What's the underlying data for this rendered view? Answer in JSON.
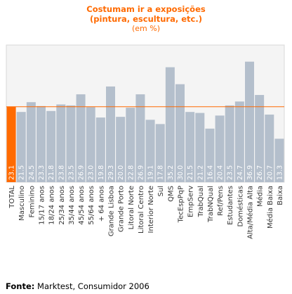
{
  "title_line1": "Costumam ir a exposições",
  "title_line2": "(pintura, escultura, etc.)",
  "subtitle": "(em %)",
  "source_label": "Fonte:",
  "source_text": "Marktest, Consumidor 2006",
  "colors": {
    "bar": "#b4bfcc",
    "highlight": "#ff6a00",
    "plot_bg": "#f4f4f4",
    "reference_line": "#ff6a00"
  },
  "chart_data": {
    "type": "bar",
    "title": "Costumam ir a exposições (pintura, escultura, etc.)",
    "subtitle": "(em %)",
    "ylim": [
      0,
      42
    ],
    "reference_value": 23.1,
    "highlight_category": "TOTAL",
    "categories": [
      "TOTAL",
      "Masculino",
      "Feminino",
      "15/17 anos",
      "18/24 anos",
      "25/34 anos",
      "35/44 anos",
      "45/54 anos",
      "55/64 anos",
      "+ 64 anos",
      "Grande Lisboa",
      "Grande Porto",
      "Litoral Norte",
      "Litoral Centro",
      "Interior Norte",
      "Sul",
      "QMS",
      "TecEspPqP",
      "EmpServ",
      "TrabQual",
      "TrabNQual",
      "Ref/Pens",
      "Estudantes",
      "Domésticas",
      "Alta/Média Alta",
      "Média",
      "Média Baixa",
      "Baixa"
    ],
    "values": [
      23.1,
      21.5,
      24.5,
      23.3,
      21.8,
      23.8,
      23.5,
      26.9,
      23.0,
      19.8,
      29.3,
      20.0,
      22.8,
      26.9,
      19.1,
      17.8,
      35.2,
      30.0,
      21.5,
      21.2,
      16.4,
      20.4,
      23.5,
      24.7,
      36.9,
      26.7,
      20.7,
      13.3
    ],
    "value_labels": [
      "23.1",
      "21.5",
      "24.5",
      "23.3",
      "21.8",
      "23.8",
      "23.5",
      "26.9",
      "23.0",
      "19.8",
      "29.3",
      "20.0",
      "22.8",
      "26.9",
      "19.1",
      "17.8",
      "35.2",
      "30.0",
      "21.5",
      "21.2",
      "16.4",
      "20.4",
      "23.5",
      "24.7",
      "36.9",
      "26.7",
      "20.7",
      "13.3"
    ]
  }
}
